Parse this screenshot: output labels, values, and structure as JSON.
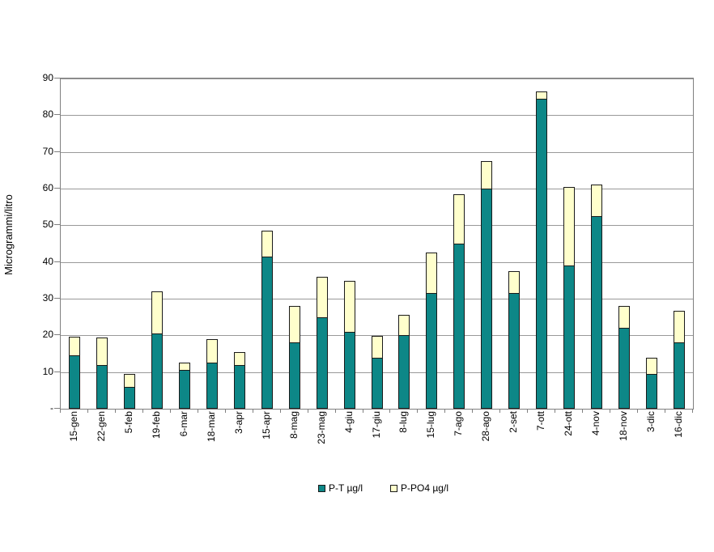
{
  "chart_data": {
    "type": "bar",
    "stacked": true,
    "title": "",
    "xlabel": "",
    "ylabel": "Microgrammi/litro",
    "ylim": [
      0,
      90
    ],
    "ytick_interval": 10,
    "zero_tick_label": "-",
    "grid": true,
    "legend_position": "bottom",
    "categories": [
      "15-gen",
      "22-gen",
      "5-feb",
      "19-feb",
      "6-mar",
      "18-mar",
      "3-apr",
      "15-apr",
      "8-mag",
      "23-mag",
      "4-giu",
      "17-giu",
      "8-lug",
      "15-lug",
      "7-ago",
      "28-ago",
      "2-set",
      "7-ott",
      "24-ott",
      "4-nov",
      "18-nov",
      "3-dic",
      "16-dic"
    ],
    "series": [
      {
        "name": "P-T µg/l",
        "color": "#0D8787",
        "values": [
          14.5,
          12,
          6,
          20.5,
          10.5,
          12.5,
          12,
          41.5,
          18,
          25,
          21,
          14,
          20,
          31.5,
          45,
          60,
          31.5,
          84.5,
          39,
          52.5,
          22,
          9.5,
          18
        ]
      },
      {
        "name": "P-PO4 µg/l",
        "color": "#FFFFCC",
        "values": [
          5,
          7.5,
          3.5,
          11.5,
          2,
          6.5,
          3.5,
          7,
          10,
          11,
          14,
          6,
          5.5,
          11,
          13.5,
          7.5,
          6,
          2,
          21.5,
          8.5,
          6,
          4.5,
          8.5
        ]
      }
    ],
    "stacked_totals": [
      19.5,
      19.5,
      9.5,
      32,
      12.5,
      19,
      15.5,
      48.5,
      28,
      36,
      35,
      20,
      25.5,
      42.5,
      58.5,
      67.5,
      37.5,
      86.5,
      60.5,
      61,
      28,
      14,
      26.5
    ]
  },
  "colors": {
    "background": "#FFFFFF",
    "gridline": "#999999",
    "axis": "#808080",
    "bar_border": "#1A1A1A",
    "text": "#000000"
  }
}
